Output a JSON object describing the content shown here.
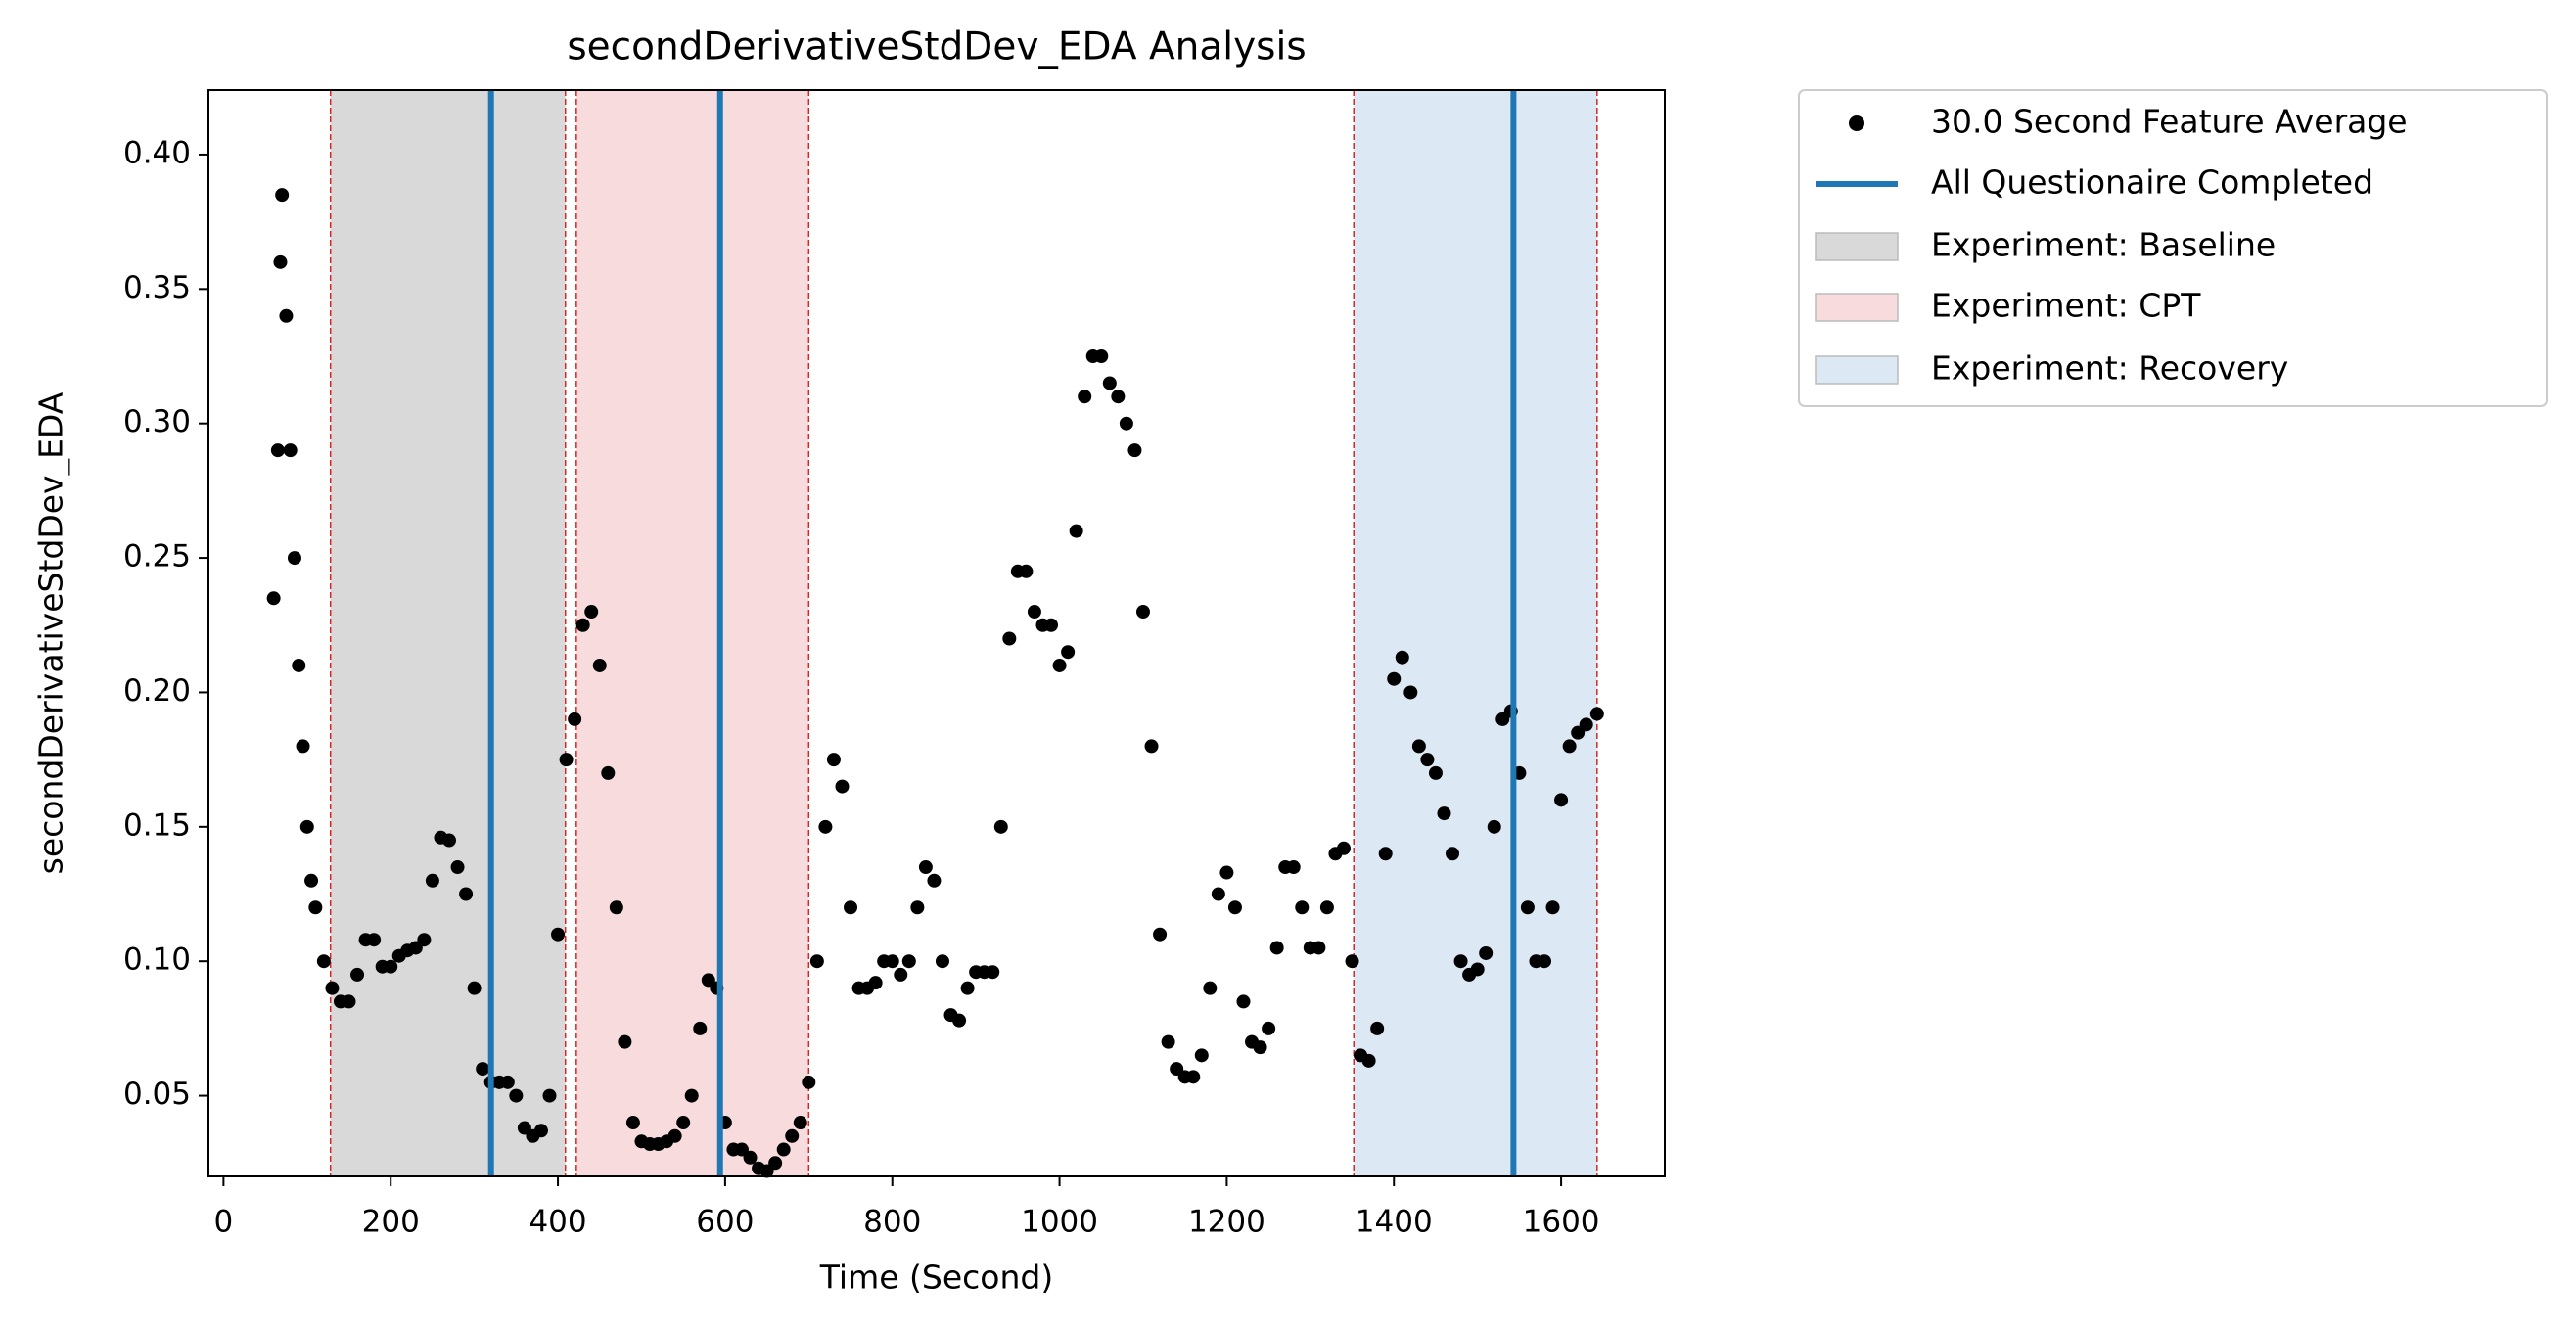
{
  "chart_data": {
    "type": "scatter",
    "title": "secondDerivativeStdDev_EDA Analysis",
    "xlabel": "Time (Second)",
    "ylabel": "secondDerivativeStdDev_EDA",
    "xlim": [
      -18,
      1724
    ],
    "ylim": [
      0.02,
      0.424
    ],
    "xticks": [
      0,
      200,
      400,
      600,
      800,
      1000,
      1200,
      1400,
      1600
    ],
    "yticks": [
      0.05,
      {
        "value": 0.1,
        "label": "0.10"
      },
      0.15,
      {
        "value": 0.2,
        "label": "0.20"
      },
      0.25,
      {
        "value": 0.3,
        "label": "0.30"
      },
      0.35,
      {
        "value": 0.4,
        "label": "0.40"
      }
    ],
    "series": [
      {
        "name": "30.0 Second Feature Average",
        "color": "#000000",
        "x": [
          60,
          65,
          68,
          70,
          75,
          80,
          85,
          90,
          95,
          100,
          105,
          110,
          120,
          130,
          140,
          150,
          160,
          170,
          180,
          190,
          200,
          210,
          220,
          230,
          240,
          250,
          260,
          270,
          280,
          290,
          300,
          310,
          320,
          330,
          340,
          350,
          360,
          370,
          380,
          390,
          400,
          410,
          420,
          430,
          440,
          450,
          460,
          470,
          480,
          490,
          500,
          510,
          520,
          530,
          540,
          550,
          560,
          570,
          580,
          590,
          600,
          610,
          620,
          630,
          640,
          650,
          660,
          670,
          680,
          690,
          700,
          710,
          720,
          730,
          740,
          750,
          760,
          770,
          780,
          790,
          800,
          810,
          820,
          830,
          840,
          850,
          860,
          870,
          880,
          890,
          900,
          910,
          920,
          930,
          940,
          950,
          960,
          970,
          980,
          990,
          1000,
          1010,
          1020,
          1030,
          1040,
          1050,
          1060,
          1070,
          1080,
          1090,
          1100,
          1110,
          1120,
          1130,
          1140,
          1150,
          1160,
          1170,
          1180,
          1190,
          1200,
          1210,
          1220,
          1230,
          1240,
          1250,
          1260,
          1270,
          1280,
          1290,
          1300,
          1310,
          1320,
          1330,
          1340,
          1350,
          1360,
          1370,
          1380,
          1390,
          1400,
          1410,
          1420,
          1430,
          1440,
          1450,
          1460,
          1470,
          1480,
          1490,
          1500,
          1510,
          1520,
          1530,
          1540,
          1550,
          1560,
          1570,
          1580,
          1590,
          1600,
          1610,
          1620,
          1630,
          1643
        ],
        "values": [
          0.235,
          0.29,
          0.36,
          0.385,
          0.34,
          0.29,
          0.25,
          0.21,
          0.18,
          0.15,
          0.13,
          0.12,
          0.1,
          0.09,
          0.085,
          0.085,
          0.095,
          0.108,
          0.108,
          0.098,
          0.098,
          0.102,
          0.104,
          0.105,
          0.108,
          0.13,
          0.146,
          0.145,
          0.135,
          0.125,
          0.09,
          0.06,
          0.055,
          0.055,
          0.055,
          0.05,
          0.038,
          0.035,
          0.037,
          0.05,
          0.11,
          0.175,
          0.19,
          0.225,
          0.23,
          0.21,
          0.17,
          0.12,
          0.07,
          0.04,
          0.033,
          0.032,
          0.032,
          0.033,
          0.035,
          0.04,
          0.05,
          0.075,
          0.093,
          0.09,
          0.04,
          0.03,
          0.03,
          0.027,
          0.023,
          0.022,
          0.025,
          0.03,
          0.035,
          0.04,
          0.055,
          0.1,
          0.15,
          0.175,
          0.165,
          0.12,
          0.09,
          0.09,
          0.092,
          0.1,
          0.1,
          0.095,
          0.1,
          0.12,
          0.135,
          0.13,
          0.1,
          0.08,
          0.078,
          0.09,
          0.096,
          0.096,
          0.096,
          0.15,
          0.22,
          0.245,
          0.245,
          0.23,
          0.225,
          0.225,
          0.21,
          0.215,
          0.26,
          0.31,
          0.325,
          0.325,
          0.315,
          0.31,
          0.3,
          0.29,
          0.23,
          0.18,
          0.11,
          0.07,
          0.06,
          0.057,
          0.057,
          0.065,
          0.09,
          0.125,
          0.133,
          0.12,
          0.085,
          0.07,
          0.068,
          0.075,
          0.105,
          0.135,
          0.135,
          0.12,
          0.105,
          0.105,
          0.12,
          0.14,
          0.142,
          0.1,
          0.065,
          0.063,
          0.075,
          0.14,
          0.205,
          0.213,
          0.2,
          0.18,
          0.175,
          0.17,
          0.155,
          0.14,
          0.1,
          0.095,
          0.097,
          0.103,
          0.15,
          0.19,
          0.193,
          0.17,
          0.12,
          0.1,
          0.1,
          0.12,
          0.16,
          0.18,
          0.185,
          0.188,
          0.192
        ]
      }
    ],
    "vlines": {
      "name": "All Questionaire Completed",
      "color": "#1f77b4",
      "x": [
        320,
        594,
        1543
      ]
    },
    "span_edge_color": "#d62728",
    "spans": [
      {
        "name": "Experiment: Baseline",
        "color": "#d9d9d9",
        "start": 128,
        "end": 409
      },
      {
        "name": "Experiment: CPT",
        "color": "#f8dcdd",
        "start": 422,
        "end": 700
      },
      {
        "name": "Experiment: Recovery",
        "color": "#dce8f3",
        "start": 1352,
        "end": 1643
      }
    ]
  }
}
